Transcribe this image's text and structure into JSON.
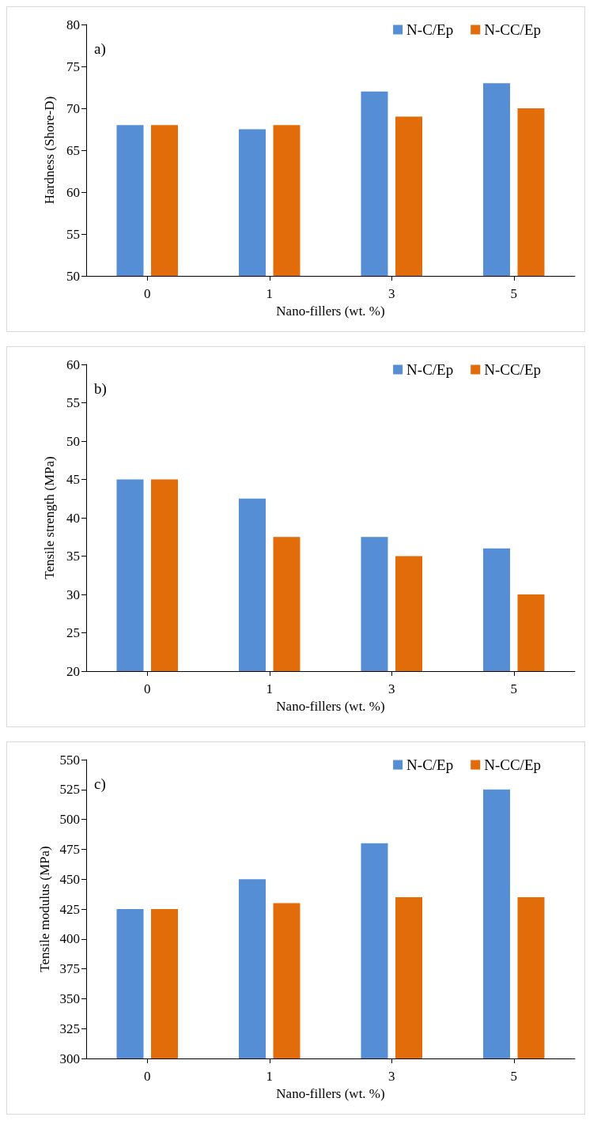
{
  "chart_data": [
    {
      "type": "bar",
      "title": "a)",
      "xlabel": "Nano-fillers (wt. %)",
      "ylabel": "Hardness (Shore-D)",
      "categories": [
        "0",
        "1",
        "3",
        "5"
      ],
      "series": [
        {
          "name": "N-C/Ep",
          "color": "#558ed5",
          "values": [
            68,
            67.5,
            72,
            73
          ]
        },
        {
          "name": "N-CC/Ep",
          "color": "#e36c0a",
          "values": [
            68,
            68,
            69,
            70
          ]
        }
      ],
      "ylim": [
        50,
        80
      ],
      "yticks": [
        50,
        55,
        60,
        65,
        70,
        75,
        80
      ],
      "grid": false,
      "legend": "top right"
    },
    {
      "type": "bar",
      "title": "b)",
      "xlabel": "Nano-fillers (wt. %)",
      "ylabel": "Tensile strength (MPa)",
      "categories": [
        "0",
        "1",
        "3",
        "5"
      ],
      "series": [
        {
          "name": "N-C/Ep",
          "color": "#558ed5",
          "values": [
            45,
            42.5,
            37.5,
            36
          ]
        },
        {
          "name": "N-CC/Ep",
          "color": "#e36c0a",
          "values": [
            45,
            37.5,
            35,
            30
          ]
        }
      ],
      "ylim": [
        20,
        60
      ],
      "yticks": [
        20,
        25,
        30,
        35,
        40,
        45,
        50,
        55,
        60
      ],
      "grid": false,
      "legend": "top right"
    },
    {
      "type": "bar",
      "title": "c)",
      "xlabel": "Nano-fillers (wt. %)",
      "ylabel": "Tensile modulus (MPa)",
      "categories": [
        "0",
        "1",
        "3",
        "5"
      ],
      "series": [
        {
          "name": "N-C/Ep",
          "color": "#558ed5",
          "values": [
            425,
            450,
            480,
            525
          ]
        },
        {
          "name": "N-CC/Ep",
          "color": "#e36c0a",
          "values": [
            425,
            430,
            435,
            435
          ]
        }
      ],
      "ylim": [
        300,
        550
      ],
      "yticks": [
        300,
        325,
        350,
        375,
        400,
        425,
        450,
        475,
        500,
        525,
        550
      ],
      "grid": false,
      "legend": "top right"
    }
  ]
}
